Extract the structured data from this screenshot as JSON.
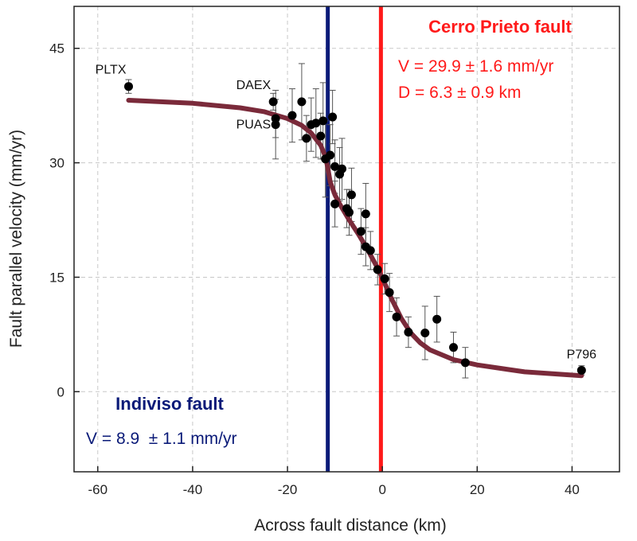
{
  "chart_data": {
    "type": "scatter",
    "title": "",
    "xlabel": "Across fault distance (km)",
    "ylabel": "Fault parallel velocity (mm/yr)",
    "xlim": [
      -65,
      50
    ],
    "ylim": [
      -10.5,
      50.5
    ],
    "x_ticks": [
      -60,
      -40,
      -20,
      0,
      20,
      40
    ],
    "y_ticks": [
      0,
      15,
      30,
      45
    ],
    "grid": true,
    "grid_style": "dashed",
    "colors": {
      "points": "#000000",
      "model_curve": "#7a2a3a",
      "indiviso": "#0a1a78",
      "cerro_prieto": "#ff1a1a",
      "axis": "#222222",
      "grid": "#c8c8c8"
    },
    "faults": [
      {
        "name": "Indiviso fault",
        "x": -11.5,
        "color": "#0a1a78",
        "annotation_lines": [
          "V = 8.9  ± 1.1 mm/yr"
        ]
      },
      {
        "name": "Cerro Prieto fault",
        "x": -0.3,
        "color": "#ff1a1a",
        "annotation_lines": [
          "V = 29.9 ± 1.6 mm/yr",
          "D = 6.3 ± 0.9 km"
        ]
      }
    ],
    "series": [
      {
        "type": "scatter",
        "points": [
          {
            "x": -53.5,
            "y": 40.0,
            "err": 0.9
          },
          {
            "x": -23.0,
            "y": 38.0,
            "err": 1.1
          },
          {
            "x": -22.5,
            "y": 35.8,
            "err": 2.5
          },
          {
            "x": -22.5,
            "y": 35.0,
            "err": 4.5
          },
          {
            "x": -19.0,
            "y": 36.2,
            "err": 3.5
          },
          {
            "x": -17.0,
            "y": 38.0,
            "err": 5.0
          },
          {
            "x": -16.0,
            "y": 33.2,
            "err": 3.0
          },
          {
            "x": -15.0,
            "y": 35.0,
            "err": 3.5
          },
          {
            "x": -14.0,
            "y": 35.2,
            "err": 4.5
          },
          {
            "x": -13.0,
            "y": 33.5,
            "err": 3.0
          },
          {
            "x": -12.5,
            "y": 35.5,
            "err": 5.0
          },
          {
            "x": -12.0,
            "y": 30.5,
            "err": 5.0
          },
          {
            "x": -11.0,
            "y": 31.0,
            "err": 4.0
          },
          {
            "x": -10.5,
            "y": 36.0,
            "err": 3.5
          },
          {
            "x": -10.0,
            "y": 29.5,
            "err": 3.5
          },
          {
            "x": -10.0,
            "y": 24.6,
            "err": 3.0
          },
          {
            "x": -9.0,
            "y": 28.5,
            "err": 3.5
          },
          {
            "x": -8.5,
            "y": 29.2,
            "err": 4.0
          },
          {
            "x": -7.5,
            "y": 24.0,
            "err": 2.5
          },
          {
            "x": -7.0,
            "y": 23.5,
            "err": 3.0
          },
          {
            "x": -6.5,
            "y": 25.8,
            "err": 3.5
          },
          {
            "x": -4.5,
            "y": 21.0,
            "err": 3.0
          },
          {
            "x": -3.5,
            "y": 23.3,
            "err": 4.0
          },
          {
            "x": -3.5,
            "y": 19.0,
            "err": 2.5
          },
          {
            "x": -2.5,
            "y": 18.5,
            "err": 2.5
          },
          {
            "x": -1.0,
            "y": 16.0,
            "err": 2.0
          },
          {
            "x": 0.5,
            "y": 14.8,
            "err": 2.0
          },
          {
            "x": 1.5,
            "y": 13.0,
            "err": 2.5
          },
          {
            "x": 3.0,
            "y": 9.8,
            "err": 2.5
          },
          {
            "x": 5.5,
            "y": 7.8,
            "err": 2.0
          },
          {
            "x": 9.0,
            "y": 7.7,
            "err": 3.5
          },
          {
            "x": 11.5,
            "y": 9.5,
            "err": 3.0
          },
          {
            "x": 15.0,
            "y": 5.8,
            "err": 2.0
          },
          {
            "x": 17.5,
            "y": 3.8,
            "err": 2.0
          },
          {
            "x": 42.0,
            "y": 2.8,
            "err": 0.6
          }
        ]
      },
      {
        "type": "line",
        "points": [
          {
            "x": -53.5,
            "y": 38.2
          },
          {
            "x": -40,
            "y": 37.8
          },
          {
            "x": -30,
            "y": 37.2
          },
          {
            "x": -25,
            "y": 36.7
          },
          {
            "x": -20,
            "y": 35.8
          },
          {
            "x": -17,
            "y": 34.9
          },
          {
            "x": -15,
            "y": 33.9
          },
          {
            "x": -13,
            "y": 32.3
          },
          {
            "x": -12,
            "y": 30.8
          },
          {
            "x": -11.5,
            "y": 29.3
          },
          {
            "x": -11,
            "y": 27.5
          },
          {
            "x": -10,
            "y": 25.8
          },
          {
            "x": -9,
            "y": 24.6
          },
          {
            "x": -7,
            "y": 22.5
          },
          {
            "x": -5,
            "y": 20.6
          },
          {
            "x": -3,
            "y": 18.5
          },
          {
            "x": -1,
            "y": 16.2
          },
          {
            "x": 0,
            "y": 14.9
          },
          {
            "x": 1,
            "y": 13.5
          },
          {
            "x": 2,
            "y": 12.1
          },
          {
            "x": 4,
            "y": 9.6
          },
          {
            "x": 6,
            "y": 7.7
          },
          {
            "x": 8,
            "y": 6.4
          },
          {
            "x": 10,
            "y": 5.5
          },
          {
            "x": 15,
            "y": 4.2
          },
          {
            "x": 20,
            "y": 3.5
          },
          {
            "x": 30,
            "y": 2.6
          },
          {
            "x": 42,
            "y": 2.1
          }
        ]
      }
    ],
    "point_labels": [
      {
        "text": "PLTX",
        "x": -53.5,
        "y": 40.0,
        "position": "above-left"
      },
      {
        "text": "DAEX",
        "x": -23.0,
        "y": 38.0,
        "position": "above-left"
      },
      {
        "text": "PUAS",
        "x": -22.5,
        "y": 35.0,
        "position": "left"
      },
      {
        "text": "P796",
        "x": 42.0,
        "y": 2.8,
        "position": "above"
      }
    ]
  }
}
